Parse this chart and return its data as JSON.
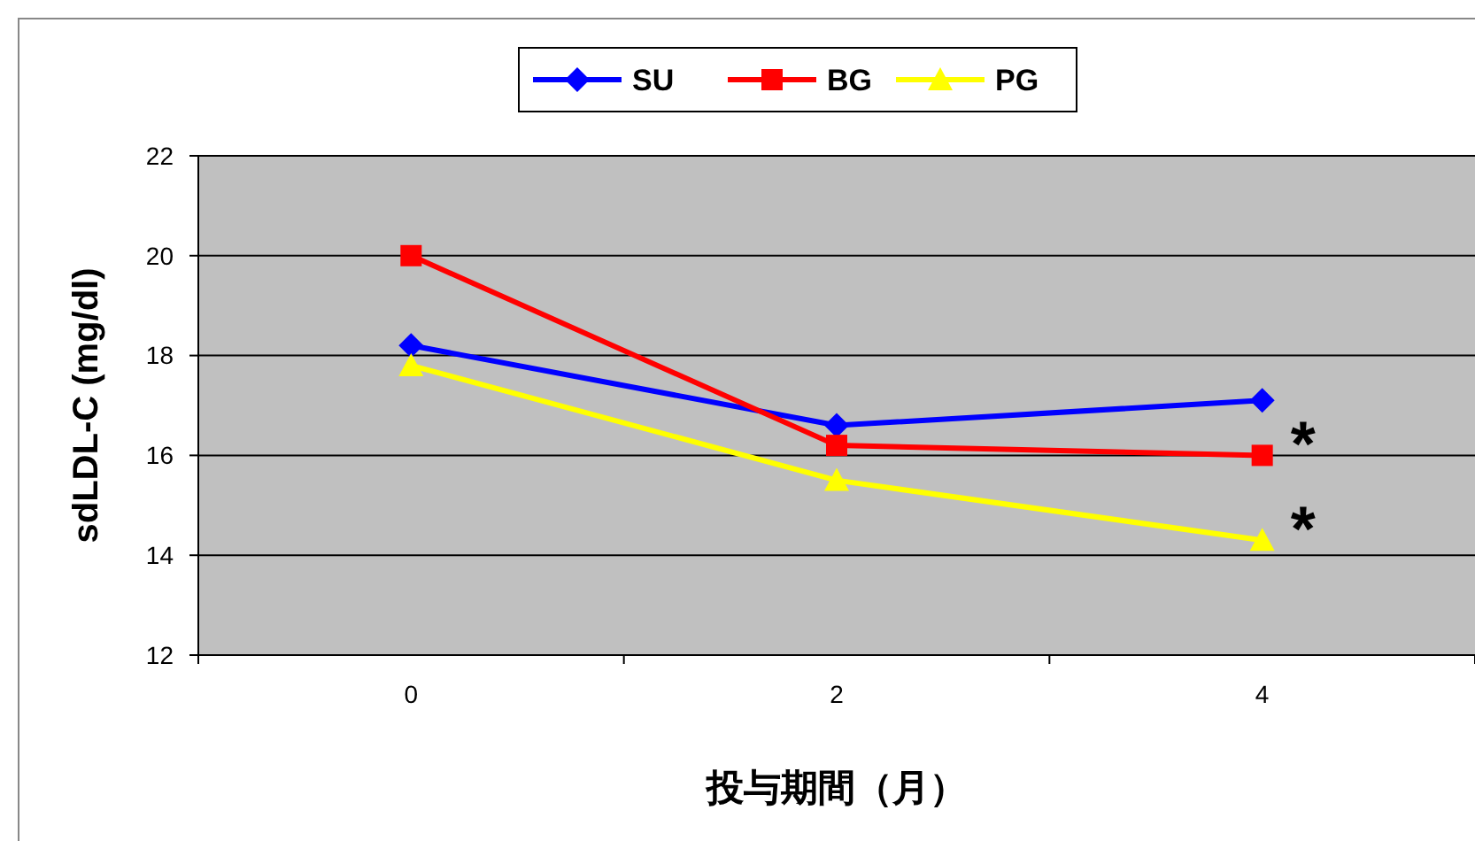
{
  "chart_data": {
    "type": "line",
    "xlabel": "投与期間（月）",
    "ylabel": "sdLDL-C (mg/dl)",
    "categories": [
      "0",
      "2",
      "4"
    ],
    "series": [
      {
        "name": "SU",
        "color": "#0000ff",
        "marker": "diamond",
        "values": [
          18.2,
          16.6,
          17.1
        ]
      },
      {
        "name": "BG",
        "color": "#ff0000",
        "marker": "square",
        "values": [
          20.0,
          16.2,
          16.0
        ]
      },
      {
        "name": "PG",
        "color": "#ffff00",
        "marker": "triangle",
        "values": [
          17.8,
          15.5,
          14.3
        ]
      }
    ],
    "ylim": [
      12,
      22
    ],
    "yticks": [
      12,
      14,
      16,
      18,
      20,
      22
    ],
    "grid": "y",
    "legend": "top",
    "annotations": [
      {
        "text": "*",
        "x": "4",
        "y": 16.0
      },
      {
        "text": "*",
        "x": "4",
        "y": 14.3
      }
    ]
  }
}
